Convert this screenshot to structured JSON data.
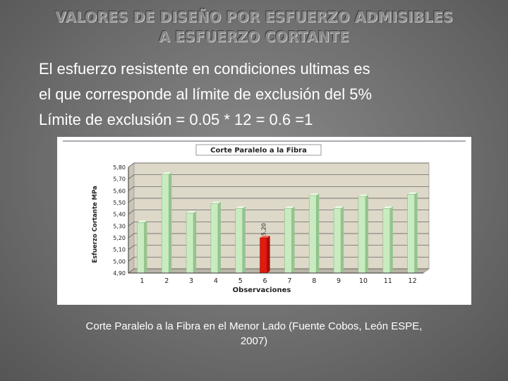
{
  "slide": {
    "title_line1": "VALORES DE DISEÑO POR ESFUERZO ADMISIBLES",
    "title_line2": "A ESFUERZO CORTANTE",
    "body_lines": [
      "El esfuerzo resistente en condiciones ultimas es",
      "el que corresponde al límite de exclusión del 5%",
      "Límite de exclusión = 0.05 * 12 = 0.6 =1"
    ],
    "caption_line1": "Corte Paralelo a la Fibra en el Menor Lado (Fuente Cobos, León ESPE,",
    "caption_line2": "2007)"
  },
  "chart_data": {
    "type": "bar",
    "title": "Corte Paralelo a la Fibra",
    "xlabel": "Observaciones",
    "ylabel": "Esfuerzo Cortante MPa",
    "categories": [
      "1",
      "2",
      "3",
      "4",
      "5",
      "6",
      "7",
      "8",
      "9",
      "10",
      "11",
      "12"
    ],
    "values": [
      5.33,
      5.74,
      5.41,
      5.49,
      5.45,
      5.2,
      5.45,
      5.56,
      5.45,
      5.55,
      5.45,
      5.57
    ],
    "ylim": [
      4.9,
      5.8
    ],
    "yticks": [
      "4,90",
      "5,00",
      "5,10",
      "5,20",
      "5,30",
      "5,40",
      "5,50",
      "5,60",
      "5,70",
      "5,80"
    ],
    "data_labels": [
      {
        "index": 5,
        "text": "5,20"
      }
    ],
    "grid": true,
    "colors": {
      "bar": "#c8ecc0",
      "bar_edge": "#8fb98a",
      "highlight_bar": "#e31a0e",
      "plot_background": "#ddd8c8",
      "chart_background": "#ffffff"
    }
  }
}
